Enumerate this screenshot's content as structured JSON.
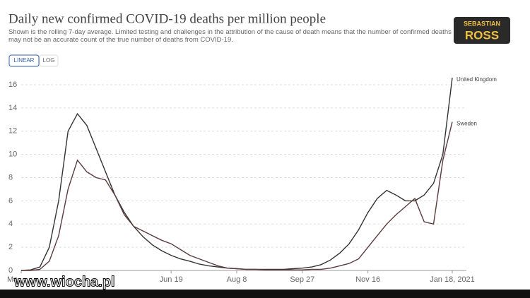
{
  "chart_data": {
    "type": "line",
    "title": "Daily new confirmed COVID-19 deaths per million people",
    "subtitle": "Shown is the rolling 7-day average. Limited testing and challenges in the attribution of the cause of death means that the number of confirmed deaths may not be an accurate count of the true number of deaths from COVID-19.",
    "buttons": [
      "LINEAR",
      "LOG"
    ],
    "watermarks": [
      "SEBASTIAN",
      "ROSS",
      "www.wiocha.pl"
    ],
    "categories": [
      "Ma",
      null,
      null,
      null,
      null,
      null,
      null,
      null,
      null,
      null,
      null,
      null,
      null,
      null,
      null,
      null,
      "Jun 19",
      null,
      null,
      null,
      null,
      null,
      null,
      "Aug 8",
      null,
      null,
      null,
      null,
      null,
      null,
      "Sep 27",
      null,
      null,
      null,
      null,
      null,
      null,
      "Nov 16",
      null,
      null,
      null,
      null,
      null,
      null,
      null,
      null,
      "Jan 18, 2021"
    ],
    "series": [
      {
        "name": "United Kingdom",
        "color": "#333333",
        "values": [
          0,
          0.05,
          0.3,
          2,
          6,
          12,
          13.5,
          12.5,
          10.5,
          8.5,
          6.5,
          5,
          3.8,
          2.9,
          2.2,
          1.7,
          1.3,
          1,
          0.8,
          0.55,
          0.4,
          0.3,
          0.2,
          0.15,
          0.1,
          0.1,
          0.1,
          0.1,
          0.1,
          0.15,
          0.2,
          0.3,
          0.5,
          0.9,
          1.5,
          2.3,
          3.5,
          5,
          6.2,
          6.9,
          6.5,
          6,
          6,
          6.5,
          7.5,
          10,
          16.6
        ]
      },
      {
        "name": "Sweden",
        "color": "#5b3b3b",
        "values": [
          0,
          0,
          0.1,
          0.8,
          3,
          7,
          9.5,
          8.5,
          8,
          7.8,
          6.5,
          4.8,
          3.8,
          3.4,
          3,
          2.6,
          2.3,
          1.8,
          1.3,
          1,
          0.7,
          0.4,
          0.2,
          0.15,
          0.1,
          0.1,
          0.05,
          0.05,
          0.05,
          0.05,
          0.05,
          0.1,
          0.1,
          0.2,
          0.4,
          0.6,
          1,
          2,
          3,
          4,
          4.8,
          5.5,
          6.2,
          4.2,
          4,
          9.5,
          12.8
        ]
      }
    ],
    "ylim": [
      0,
      16
    ],
    "yticks": [
      0,
      2,
      4,
      6,
      8,
      10,
      12,
      14,
      16
    ],
    "grid": true
  }
}
